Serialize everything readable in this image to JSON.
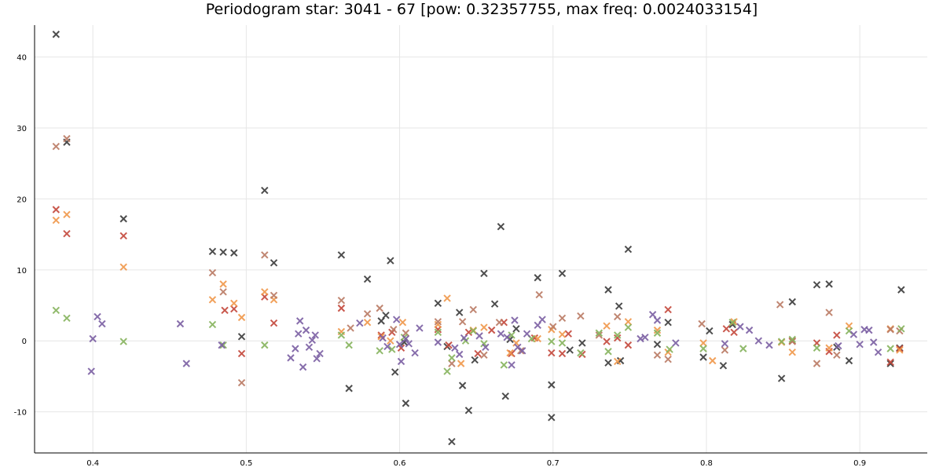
{
  "chart_data": {
    "type": "scatter",
    "title": "Periodogram star: 3041 - 67 [pow: 0.32357755, max freq: 0.0024033154]",
    "xlabel": "",
    "ylabel": "",
    "xlim": [
      0.362,
      0.944
    ],
    "ylim": [
      -15.8,
      44.5
    ],
    "x_ticks": [
      0.4,
      0.5,
      0.6,
      0.7,
      0.8,
      0.9
    ],
    "x_tick_labels": [
      "0.4",
      "0.5",
      "0.6",
      "0.7",
      "0.8",
      "0.9"
    ],
    "y_ticks": [
      -10,
      0,
      10,
      20,
      30,
      40
    ],
    "y_tick_labels": [
      "-10",
      "0",
      "10",
      "20",
      "30",
      "40"
    ],
    "grid": true,
    "marker": "x",
    "series": [
      {
        "color": "#3a3a3a",
        "points": [
          [
            0.376,
            43.2
          ],
          [
            0.383,
            28.0
          ],
          [
            0.42,
            17.2
          ],
          [
            0.478,
            12.6
          ],
          [
            0.485,
            12.5
          ],
          [
            0.492,
            12.4
          ],
          [
            0.512,
            21.2
          ],
          [
            0.518,
            11.0
          ],
          [
            0.497,
            0.6
          ],
          [
            0.562,
            12.1
          ],
          [
            0.567,
            -6.7
          ],
          [
            0.579,
            8.7
          ],
          [
            0.588,
            2.8
          ],
          [
            0.591,
            3.6
          ],
          [
            0.594,
            11.3
          ],
          [
            0.597,
            -4.4
          ],
          [
            0.603,
            -0.2
          ],
          [
            0.604,
            -8.8
          ],
          [
            0.625,
            5.3
          ],
          [
            0.631,
            -0.8
          ],
          [
            0.634,
            -14.2
          ],
          [
            0.639,
            4.0
          ],
          [
            0.641,
            -6.3
          ],
          [
            0.645,
            -9.8
          ],
          [
            0.649,
            -2.7
          ],
          [
            0.655,
            9.5
          ],
          [
            0.662,
            5.2
          ],
          [
            0.666,
            16.1
          ],
          [
            0.669,
            -7.8
          ],
          [
            0.672,
            0.2
          ],
          [
            0.676,
            1.7
          ],
          [
            0.69,
            8.9
          ],
          [
            0.699,
            -6.2
          ],
          [
            0.699,
            -10.8
          ],
          [
            0.706,
            9.5
          ],
          [
            0.711,
            -1.3
          ],
          [
            0.719,
            -0.3
          ],
          [
            0.736,
            7.2
          ],
          [
            0.736,
            -3.1
          ],
          [
            0.743,
            4.9
          ],
          [
            0.744,
            -2.8
          ],
          [
            0.749,
            12.9
          ],
          [
            0.768,
            -0.5
          ],
          [
            0.775,
            2.6
          ],
          [
            0.798,
            -2.3
          ],
          [
            0.802,
            1.4
          ],
          [
            0.811,
            -3.5
          ],
          [
            0.817,
            2.3
          ],
          [
            0.849,
            -5.3
          ],
          [
            0.856,
            5.5
          ],
          [
            0.872,
            7.9
          ],
          [
            0.88,
            8.0
          ],
          [
            0.885,
            -0.9
          ],
          [
            0.893,
            -2.8
          ],
          [
            0.92,
            -3.2
          ],
          [
            0.927,
            7.2
          ],
          [
            0.926,
            -1.0
          ]
        ]
      },
      {
        "color": "#c4473a",
        "points": [
          [
            0.376,
            18.5
          ],
          [
            0.383,
            15.1
          ],
          [
            0.42,
            14.8
          ],
          [
            0.486,
            4.3
          ],
          [
            0.492,
            4.5
          ],
          [
            0.497,
            -1.8
          ],
          [
            0.512,
            6.2
          ],
          [
            0.518,
            2.5
          ],
          [
            0.562,
            4.6
          ],
          [
            0.588,
            0.8
          ],
          [
            0.595,
            1.2
          ],
          [
            0.601,
            -1.0
          ],
          [
            0.625,
            1.6
          ],
          [
            0.632,
            -0.6
          ],
          [
            0.645,
            1.2
          ],
          [
            0.651,
            -1.8
          ],
          [
            0.66,
            1.5
          ],
          [
            0.668,
            2.6
          ],
          [
            0.673,
            -1.8
          ],
          [
            0.688,
            0.4
          ],
          [
            0.699,
            -1.7
          ],
          [
            0.706,
            -1.8
          ],
          [
            0.71,
            1.0
          ],
          [
            0.719,
            -1.9
          ],
          [
            0.735,
            -0.1
          ],
          [
            0.742,
            0.4
          ],
          [
            0.749,
            -0.6
          ],
          [
            0.775,
            4.4
          ],
          [
            0.813,
            1.7
          ],
          [
            0.818,
            1.2
          ],
          [
            0.856,
            0.0
          ],
          [
            0.872,
            -0.3
          ],
          [
            0.88,
            -1.5
          ],
          [
            0.885,
            0.8
          ],
          [
            0.92,
            -3.0
          ],
          [
            0.926,
            -1.1
          ]
        ]
      },
      {
        "color": "#f0974a",
        "points": [
          [
            0.376,
            17.0
          ],
          [
            0.383,
            17.8
          ],
          [
            0.42,
            10.4
          ],
          [
            0.478,
            5.8
          ],
          [
            0.485,
            8.0
          ],
          [
            0.492,
            5.3
          ],
          [
            0.497,
            3.3
          ],
          [
            0.512,
            6.9
          ],
          [
            0.518,
            5.8
          ],
          [
            0.562,
            1.3
          ],
          [
            0.579,
            2.6
          ],
          [
            0.588,
            0.6
          ],
          [
            0.594,
            0.0
          ],
          [
            0.602,
            2.6
          ],
          [
            0.625,
            2.3
          ],
          [
            0.631,
            6.0
          ],
          [
            0.64,
            -3.2
          ],
          [
            0.648,
            1.5
          ],
          [
            0.655,
            1.9
          ],
          [
            0.672,
            -1.7
          ],
          [
            0.676,
            -0.3
          ],
          [
            0.69,
            0.3
          ],
          [
            0.699,
            1.6
          ],
          [
            0.706,
            0.9
          ],
          [
            0.735,
            2.1
          ],
          [
            0.742,
            -2.9
          ],
          [
            0.749,
            2.7
          ],
          [
            0.768,
            1.5
          ],
          [
            0.775,
            -1.6
          ],
          [
            0.798,
            -0.3
          ],
          [
            0.804,
            -2.8
          ],
          [
            0.818,
            2.7
          ],
          [
            0.849,
            -0.2
          ],
          [
            0.856,
            -1.6
          ],
          [
            0.88,
            -1.0
          ],
          [
            0.893,
            2.1
          ],
          [
            0.92,
            1.7
          ],
          [
            0.926,
            -1.3
          ]
        ]
      },
      {
        "color": "#ba7a63",
        "points": [
          [
            0.376,
            27.4
          ],
          [
            0.383,
            28.5
          ],
          [
            0.478,
            9.6
          ],
          [
            0.485,
            6.9
          ],
          [
            0.512,
            12.1
          ],
          [
            0.518,
            6.4
          ],
          [
            0.497,
            -5.9
          ],
          [
            0.562,
            5.7
          ],
          [
            0.568,
            1.8
          ],
          [
            0.579,
            3.8
          ],
          [
            0.587,
            4.6
          ],
          [
            0.596,
            1.6
          ],
          [
            0.604,
            1.1
          ],
          [
            0.625,
            2.7
          ],
          [
            0.634,
            -3.2
          ],
          [
            0.641,
            2.7
          ],
          [
            0.648,
            4.4
          ],
          [
            0.655,
            -2.0
          ],
          [
            0.665,
            2.6
          ],
          [
            0.679,
            -1.4
          ],
          [
            0.691,
            6.5
          ],
          [
            0.7,
            2.0
          ],
          [
            0.706,
            3.2
          ],
          [
            0.718,
            3.5
          ],
          [
            0.73,
            0.8
          ],
          [
            0.742,
            3.4
          ],
          [
            0.768,
            -2.0
          ],
          [
            0.775,
            -2.6
          ],
          [
            0.797,
            2.4
          ],
          [
            0.812,
            -1.3
          ],
          [
            0.848,
            5.1
          ],
          [
            0.856,
            -0.1
          ],
          [
            0.872,
            -3.2
          ],
          [
            0.88,
            4.0
          ],
          [
            0.885,
            -2.0
          ],
          [
            0.92,
            1.6
          ],
          [
            0.926,
            1.4
          ]
        ]
      },
      {
        "color": "#86b35d",
        "points": [
          [
            0.376,
            4.3
          ],
          [
            0.383,
            3.2
          ],
          [
            0.42,
            -0.1
          ],
          [
            0.478,
            2.3
          ],
          [
            0.485,
            -0.6
          ],
          [
            0.512,
            -0.6
          ],
          [
            0.562,
            0.8
          ],
          [
            0.567,
            -0.6
          ],
          [
            0.587,
            -1.4
          ],
          [
            0.595,
            -1.2
          ],
          [
            0.603,
            0.5
          ],
          [
            0.625,
            1.2
          ],
          [
            0.631,
            -4.3
          ],
          [
            0.634,
            -2.4
          ],
          [
            0.643,
            0.0
          ],
          [
            0.648,
            1.4
          ],
          [
            0.655,
            -0.4
          ],
          [
            0.668,
            -3.4
          ],
          [
            0.673,
            0.8
          ],
          [
            0.686,
            0.3
          ],
          [
            0.699,
            -0.1
          ],
          [
            0.706,
            -0.3
          ],
          [
            0.718,
            -1.7
          ],
          [
            0.73,
            1.1
          ],
          [
            0.736,
            -1.5
          ],
          [
            0.742,
            0.8
          ],
          [
            0.749,
            1.9
          ],
          [
            0.768,
            1.1
          ],
          [
            0.776,
            -1.2
          ],
          [
            0.798,
            -1.1
          ],
          [
            0.817,
            2.6
          ],
          [
            0.824,
            -1.1
          ],
          [
            0.849,
            -0.1
          ],
          [
            0.856,
            0.2
          ],
          [
            0.872,
            -1.0
          ],
          [
            0.893,
            1.4
          ],
          [
            0.92,
            -1.1
          ],
          [
            0.927,
            1.7
          ]
        ]
      },
      {
        "color": "#7b5fa3",
        "points": [
          [
            0.399,
            -4.3
          ],
          [
            0.4,
            0.3
          ],
          [
            0.403,
            3.4
          ],
          [
            0.406,
            2.4
          ],
          [
            0.457,
            2.4
          ],
          [
            0.461,
            -3.2
          ],
          [
            0.484,
            -0.6
          ],
          [
            0.529,
            -2.4
          ],
          [
            0.532,
            -1.1
          ],
          [
            0.534,
            1.0
          ],
          [
            0.535,
            2.8
          ],
          [
            0.537,
            -3.7
          ],
          [
            0.539,
            1.5
          ],
          [
            0.541,
            -0.9
          ],
          [
            0.543,
            0.1
          ],
          [
            0.545,
            0.8
          ],
          [
            0.546,
            -2.5
          ],
          [
            0.548,
            -1.8
          ],
          [
            0.574,
            2.5
          ],
          [
            0.589,
            0.4
          ],
          [
            0.592,
            -0.8
          ],
          [
            0.598,
            3.0
          ],
          [
            0.6,
            -0.5
          ],
          [
            0.601,
            -2.9
          ],
          [
            0.604,
            0.3
          ],
          [
            0.606,
            -0.4
          ],
          [
            0.61,
            -1.7
          ],
          [
            0.613,
            1.8
          ],
          [
            0.625,
            -0.2
          ],
          [
            0.636,
            -1.0
          ],
          [
            0.639,
            -1.9
          ],
          [
            0.642,
            0.4
          ],
          [
            0.652,
            0.7
          ],
          [
            0.656,
            -0.9
          ],
          [
            0.666,
            1.0
          ],
          [
            0.67,
            0.5
          ],
          [
            0.673,
            -3.4
          ],
          [
            0.675,
            2.9
          ],
          [
            0.677,
            -0.9
          ],
          [
            0.68,
            -1.4
          ],
          [
            0.683,
            1.0
          ],
          [
            0.69,
            2.2
          ],
          [
            0.693,
            3.0
          ],
          [
            0.757,
            0.3
          ],
          [
            0.76,
            0.5
          ],
          [
            0.765,
            3.7
          ],
          [
            0.768,
            2.9
          ],
          [
            0.78,
            -0.3
          ],
          [
            0.812,
            -0.4
          ],
          [
            0.822,
            2.0
          ],
          [
            0.828,
            1.5
          ],
          [
            0.834,
            0.0
          ],
          [
            0.841,
            -0.6
          ],
          [
            0.886,
            -0.7
          ],
          [
            0.896,
            0.9
          ],
          [
            0.9,
            -0.5
          ],
          [
            0.903,
            1.6
          ],
          [
            0.906,
            1.5
          ],
          [
            0.909,
            -0.2
          ],
          [
            0.912,
            -1.6
          ]
        ]
      }
    ]
  }
}
